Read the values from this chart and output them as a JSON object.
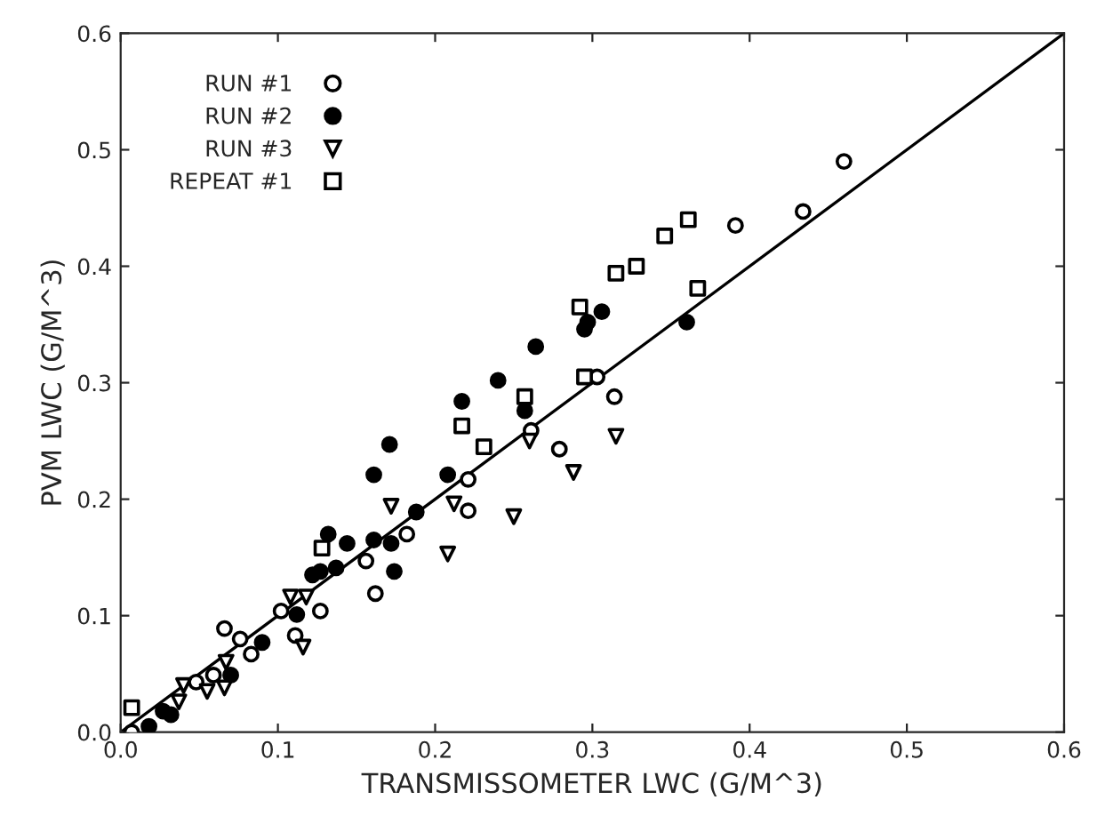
{
  "chart_data": {
    "type": "scatter",
    "xlabel": "TRANSMISSOMETER LWC (G/M^3)",
    "ylabel": "PVM LWC (G/M^3)",
    "xlim": [
      0.0,
      0.6
    ],
    "ylim": [
      0.0,
      0.6
    ],
    "xticks": [
      {
        "value": 0.0,
        "label": "0.0"
      },
      0.1,
      0.2,
      0.3,
      0.4,
      0.5,
      0.6
    ],
    "yticks": [
      {
        "value": 0.0,
        "label": "0.0"
      },
      0.1,
      0.2,
      0.3,
      0.4,
      0.5,
      0.6
    ],
    "grid": false,
    "legend": "top left",
    "series": [
      {
        "name": "RUN #1",
        "color": "#ffffff",
        "marker": "circle",
        "x": [
          0.46,
          0.434,
          0.391,
          0.314,
          0.279,
          0.261,
          0.303,
          0.221,
          0.221,
          0.182,
          0.156,
          0.162,
          0.127,
          0.102,
          0.066,
          0.076,
          0.083,
          0.111,
          0.059,
          0.048,
          0.007
        ],
        "values": [
          0.49,
          0.447,
          0.435,
          0.288,
          0.243,
          0.259,
          0.305,
          0.217,
          0.19,
          0.17,
          0.147,
          0.119,
          0.104,
          0.104,
          0.089,
          0.08,
          0.067,
          0.083,
          0.049,
          0.043,
          0.0
        ]
      },
      {
        "name": "RUN #2",
        "color": "#000000",
        "marker": "circle",
        "x": [
          0.36,
          0.306,
          0.297,
          0.295,
          0.264,
          0.24,
          0.257,
          0.217,
          0.171,
          0.161,
          0.208,
          0.188,
          0.132,
          0.144,
          0.161,
          0.172,
          0.122,
          0.127,
          0.137,
          0.174,
          0.112,
          0.09,
          0.07,
          0.027,
          0.018,
          0.032
        ],
        "values": [
          0.352,
          0.361,
          0.352,
          0.346,
          0.331,
          0.302,
          0.276,
          0.284,
          0.247,
          0.221,
          0.221,
          0.189,
          0.17,
          0.162,
          0.165,
          0.162,
          0.135,
          0.138,
          0.141,
          0.138,
          0.101,
          0.077,
          0.049,
          0.018,
          0.005,
          0.015
        ]
      },
      {
        "name": "RUN #3",
        "color": "#ffffff",
        "marker": "triangle",
        "x": [
          0.26,
          0.315,
          0.288,
          0.25,
          0.172,
          0.212,
          0.208,
          0.108,
          0.118,
          0.116,
          0.067,
          0.066,
          0.055,
          0.04,
          0.037
        ],
        "values": [
          0.25,
          0.254,
          0.223,
          0.185,
          0.194,
          0.196,
          0.153,
          0.116,
          0.116,
          0.073,
          0.06,
          0.038,
          0.035,
          0.04,
          0.026
        ]
      },
      {
        "name": "REPEAT #1",
        "color": "#ffffff",
        "marker": "square",
        "x": [
          0.361,
          0.346,
          0.328,
          0.315,
          0.367,
          0.292,
          0.295,
          0.217,
          0.257,
          0.231,
          0.128,
          0.007
        ],
        "values": [
          0.44,
          0.426,
          0.4,
          0.394,
          0.381,
          0.365,
          0.305,
          0.263,
          0.288,
          0.245,
          0.158,
          0.021
        ]
      },
      {
        "type": "line",
        "color": "#000000",
        "line_style": "solid",
        "marker": "none",
        "x": [
          0.0,
          0.6
        ],
        "values": [
          0.0,
          0.6
        ]
      }
    ]
  }
}
